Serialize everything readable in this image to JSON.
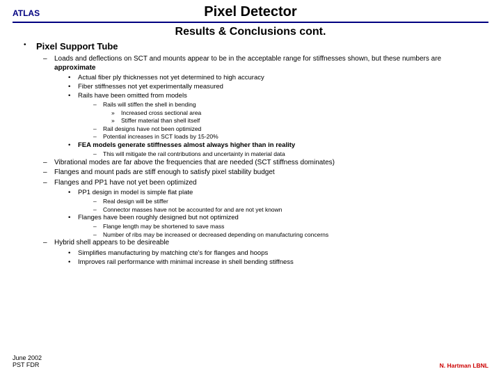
{
  "header": {
    "atlas": "ATLAS",
    "title": "Pixel Detector",
    "subtitle": "Results & Conclusions cont."
  },
  "colors": {
    "rule": "#000080",
    "atlas_text": "#000080",
    "footer_right": "#cc0000",
    "background": "#ffffff",
    "text": "#000000"
  },
  "footer": {
    "left_line1": "June 2002",
    "left_line2": "PST FDR",
    "right": "N. Hartman LBNL"
  },
  "main_heading": "Pixel Support Tube",
  "b1_prefix": "Loads and deflections on SCT and mounts appear to be in the acceptable range for stiffnesses shown, but these numbers are ",
  "b1_bold": "approximate",
  "b1_s1": "Actual fiber ply thicknesses not yet determined to high accuracy",
  "b1_s2": "Fiber stiffnesses not yet experimentally measured",
  "b1_s3": "Rails have been omitted from models",
  "b1_s3_a": "Rails will stiffen the shell in bending",
  "b1_s3_a_i": "Increased cross sectional area",
  "b1_s3_a_ii": "Stiffer material than shell itself",
  "b1_s3_b": "Rail designs have not been optimized",
  "b1_s3_c": "Potential increases in SCT loads by 15-20%",
  "b1_s4": "FEA models generate stiffnesses almost always higher than in reality",
  "b1_s4_a": "This will mitigate the rail contributions and uncertainty in material data",
  "b2": "Vibrational modes are far above the frequencies that are needed (SCT stiffness dominates)",
  "b3": "Flanges and mount pads are stiff enough to satisfy pixel stability budget",
  "b4": "Flanges and PP1 have not yet been optimized",
  "b4_s1": "PP1 design in model is simple flat plate",
  "b4_s1_a": "Real design will be stiffer",
  "b4_s1_b": "Connector masses have not be accounted for and are not yet known",
  "b4_s2": "Flanges have been roughly designed but not optimized",
  "b4_s2_a": "Flange length may be shortened to save mass",
  "b4_s2_b": "Number of ribs may be increased or decreased depending on manufacturing concerns",
  "b5": "Hybrid shell appears to be desireable",
  "b5_s1": "Simplifies manufacturing by matching cte's for flanges and hoops",
  "b5_s2": "Improves rail performance with minimal increase in shell bending stiffness"
}
